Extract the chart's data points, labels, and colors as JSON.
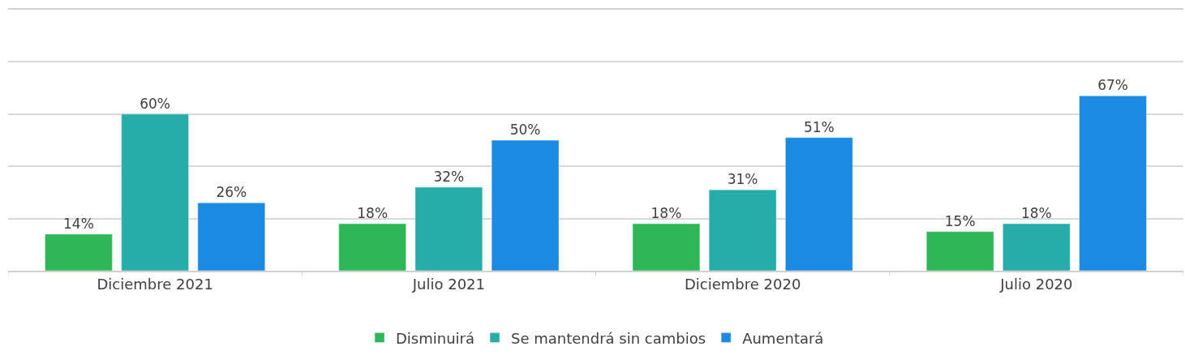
{
  "chart_data": {
    "type": "bar",
    "categories": [
      "Diciembre 2021",
      "Julio 2021",
      "Diciembre 2020",
      "Julio 2020"
    ],
    "series": [
      {
        "name": "Disminuirá",
        "color": "#2db757",
        "values": [
          14,
          18,
          18,
          15
        ],
        "value_labels": [
          "14%",
          "18%",
          "18%",
          "15%"
        ]
      },
      {
        "name": "Se mantendrá sin cambios",
        "color": "#27ada9",
        "values": [
          60,
          32,
          31,
          18
        ],
        "value_labels": [
          "60%",
          "32%",
          "31%",
          "18%"
        ]
      },
      {
        "name": "Aumentará",
        "color": "#1b8ae3",
        "values": [
          26,
          50,
          51,
          67
        ],
        "value_labels": [
          "26%",
          "50%",
          "51%",
          "67%"
        ]
      }
    ],
    "ylim": [
      0,
      100
    ],
    "yticks": [
      {
        "value": 0,
        "label": null
      },
      {
        "value": 20,
        "label": null
      },
      {
        "value": 40,
        "label": null
      },
      {
        "value": 60,
        "label": null
      },
      {
        "value": 80,
        "label": null
      },
      {
        "value": 100,
        "label": null
      }
    ],
    "grid": "y",
    "legend": "bottom",
    "tick_labels": "x"
  }
}
